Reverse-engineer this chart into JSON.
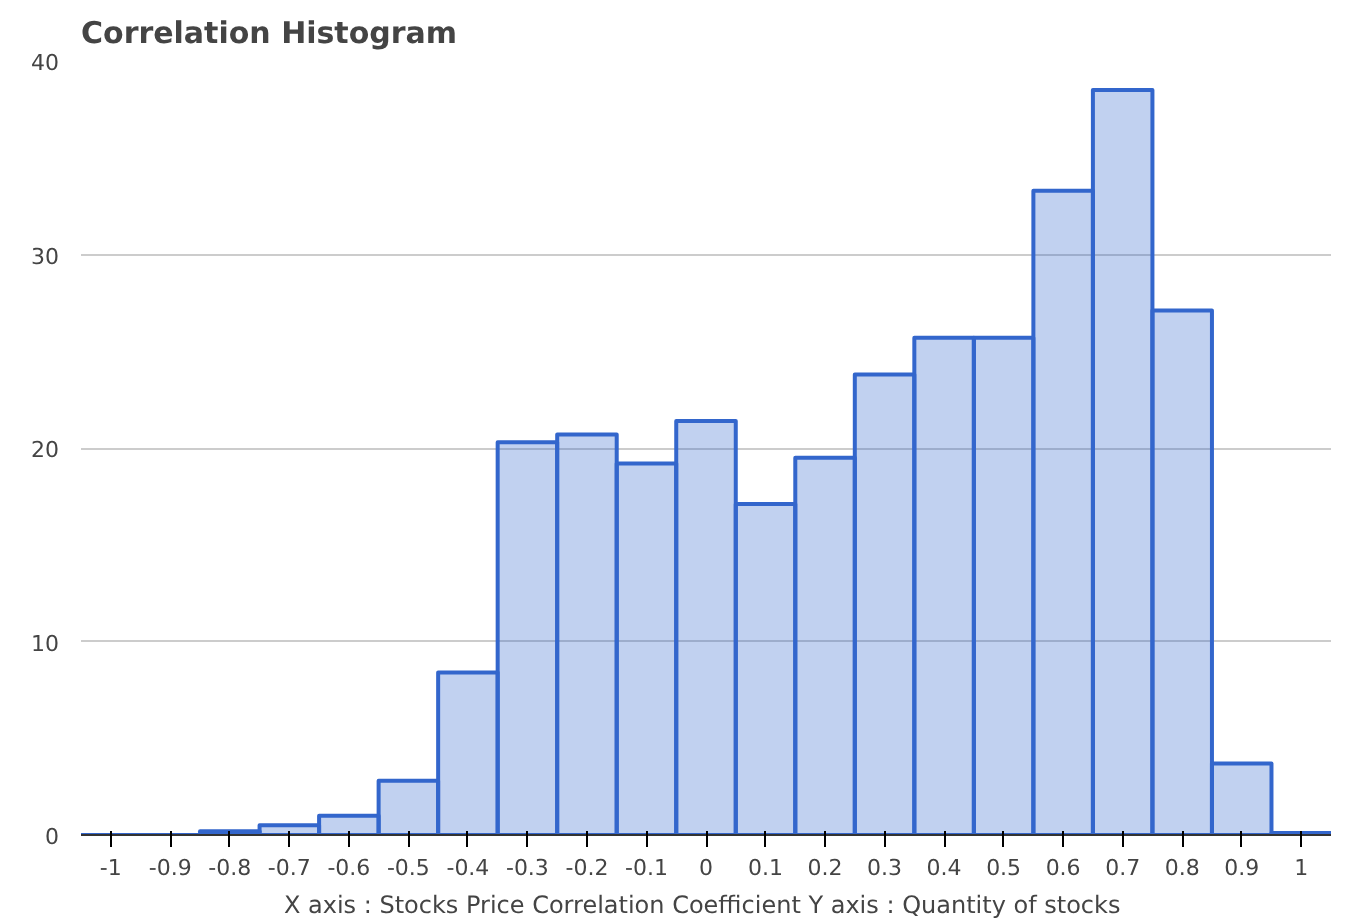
{
  "chart_data": {
    "type": "histogram",
    "title": "Correlation Histogram",
    "xlabel": "X axis : Stocks Price Correlation Coefficient  Y axis : Quantity of stocks",
    "bins": [
      -1.05,
      -0.95,
      -0.85,
      -0.75,
      -0.65,
      -0.55,
      -0.45,
      -0.35,
      -0.25,
      -0.15,
      -0.05,
      0.05,
      0.15,
      0.25,
      0.35,
      0.45,
      0.55,
      0.65,
      0.75,
      0.85,
      0.95,
      1.05
    ],
    "values": [
      0,
      0,
      0.2,
      0.5,
      1,
      2.8,
      8.4,
      20.3,
      20.7,
      19.2,
      21.4,
      17.1,
      19.5,
      23.8,
      25.7,
      25.7,
      33.3,
      38.5,
      27.1,
      3.7,
      0.1
    ],
    "color": "#3366cc",
    "xlim": [
      -1.05,
      1.05
    ],
    "ylim": [
      0,
      40
    ],
    "xticks": [
      -1,
      -0.9,
      -0.8,
      -0.7,
      -0.6,
      -0.5,
      -0.4,
      -0.3,
      -0.2,
      -0.1,
      0,
      0.1,
      0.2,
      0.3,
      0.4,
      0.5,
      0.6,
      0.7,
      0.8,
      0.9,
      1
    ],
    "yticks": [
      0,
      10,
      20,
      30,
      40
    ],
    "grid": "y"
  }
}
